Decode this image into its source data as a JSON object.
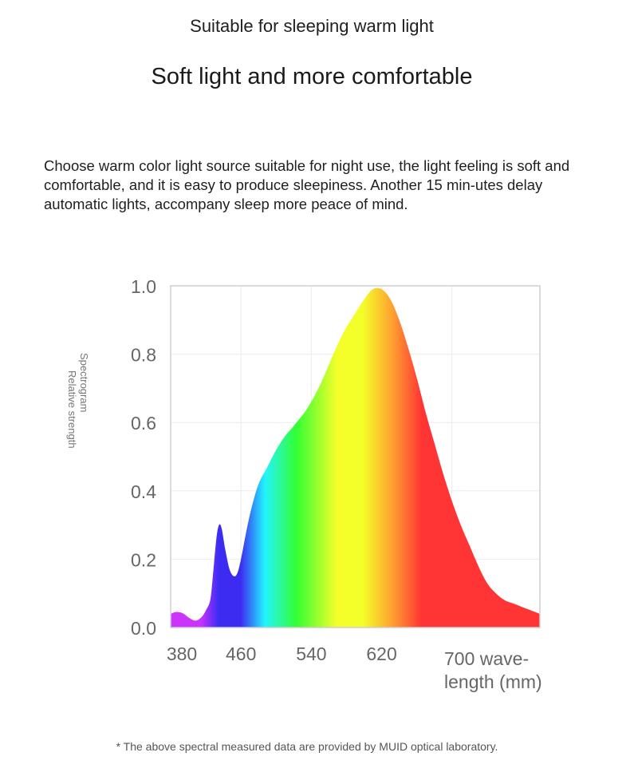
{
  "header": {
    "subtitle": "Suitable for sleeping warm light",
    "title": "Soft light and more comfortable"
  },
  "description": "Choose warm color light source suitable for night use, the light feeling is soft and comfortable, and it is easy to produce sleepiness. Another 15 min-utes delay automatic lights, accompany sleep more peace of mind.",
  "chart_data": {
    "type": "area",
    "ylabel_parts": [
      "Spectrogram",
      "Relative strength"
    ],
    "xlabel_lines": [
      "700 wave-",
      "length (mm)"
    ],
    "x_ticks": [
      {
        "value": 380,
        "label": "380"
      },
      {
        "value": 460,
        "label": "460"
      },
      {
        "value": 540,
        "label": "540"
      },
      {
        "value": 620,
        "label": "620"
      }
    ],
    "y_ticks": [
      {
        "value": 0.0,
        "label": "0.0"
      },
      {
        "value": 0.2,
        "label": "0.2"
      },
      {
        "value": 0.4,
        "label": "0.4"
      },
      {
        "value": 0.6,
        "label": "0.6"
      },
      {
        "value": 0.8,
        "label": "0.8"
      },
      {
        "value": 1.0,
        "label": "1.0"
      }
    ],
    "xlim": [
      380,
      800
    ],
    "ylim": [
      0,
      1.0
    ],
    "grid": true,
    "spectrum": {
      "x": [
        380,
        385,
        390,
        395,
        400,
        408,
        415,
        420,
        425,
        428,
        432,
        435,
        438,
        442,
        447,
        452,
        456,
        460,
        466,
        472,
        480,
        490,
        500,
        510,
        520,
        535,
        550,
        565,
        578,
        590,
        600,
        610,
        620,
        630,
        640,
        650,
        660,
        670,
        680,
        690,
        700,
        710,
        720,
        730,
        740,
        750,
        760,
        770,
        780,
        790,
        800
      ],
      "y": [
        0.04,
        0.045,
        0.045,
        0.04,
        0.03,
        0.02,
        0.03,
        0.05,
        0.08,
        0.15,
        0.26,
        0.3,
        0.29,
        0.23,
        0.17,
        0.15,
        0.16,
        0.2,
        0.28,
        0.35,
        0.42,
        0.47,
        0.52,
        0.56,
        0.59,
        0.64,
        0.71,
        0.8,
        0.87,
        0.92,
        0.96,
        0.99,
        0.99,
        0.96,
        0.9,
        0.82,
        0.73,
        0.63,
        0.54,
        0.45,
        0.37,
        0.3,
        0.24,
        0.18,
        0.13,
        0.1,
        0.08,
        0.07,
        0.06,
        0.05,
        0.04
      ]
    },
    "colors": {
      "violet": "#cc33ff",
      "blue": "#3c2cf2",
      "cyan": "#22f4ff",
      "green": "#33ff33",
      "yellow": "#f4ff2a",
      "orange": "#ffa030",
      "red": "#ff3434",
      "axis": "#cfcfcf",
      "tick_text": "#666666"
    }
  },
  "footnote": "* The above spectral measured data are provided by MUID optical laboratory."
}
